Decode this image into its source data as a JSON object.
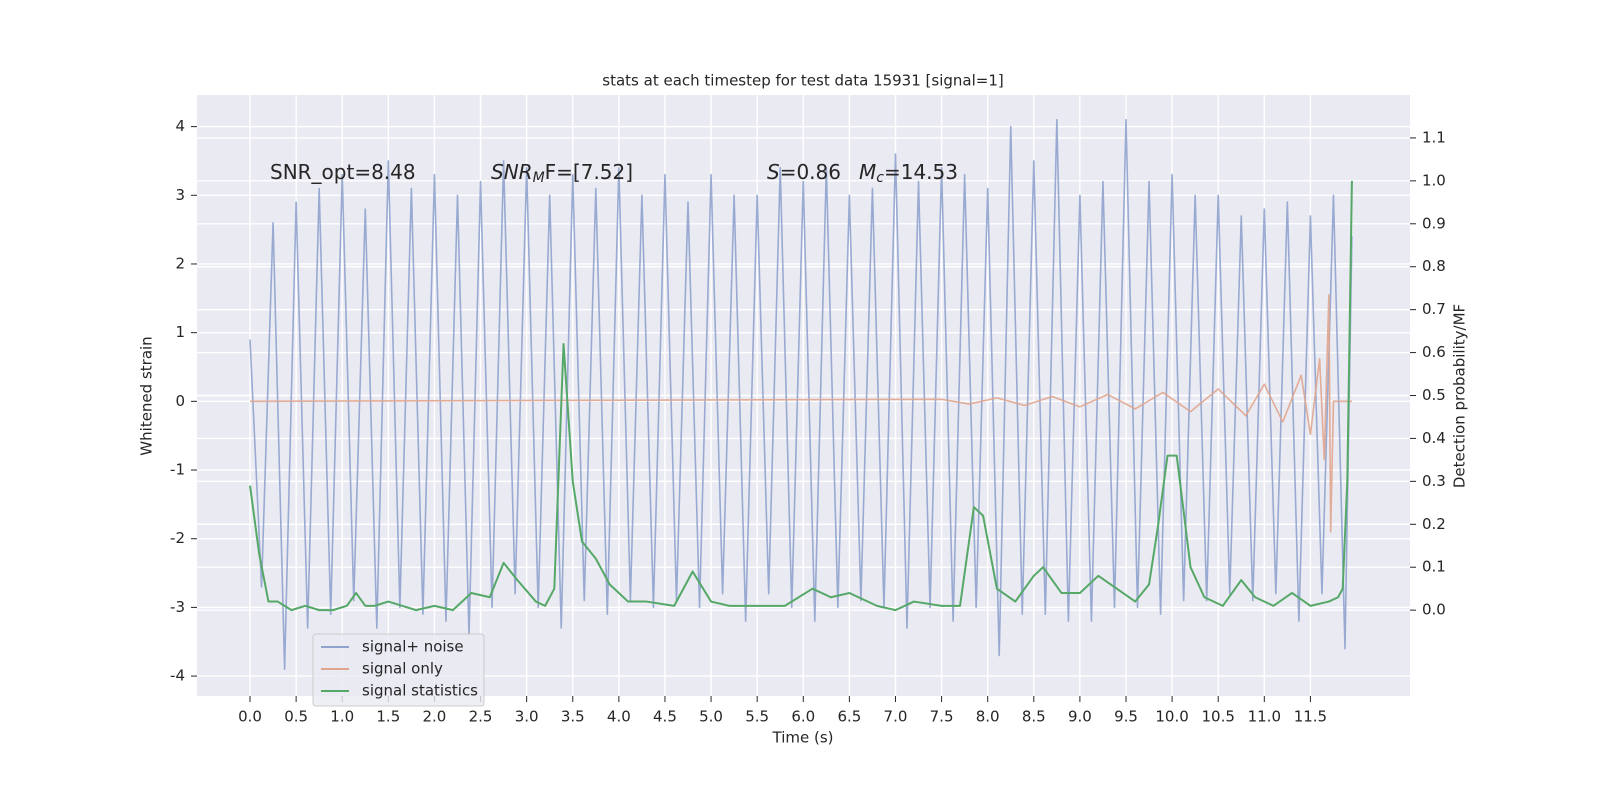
{
  "chart_data": {
    "type": "line",
    "title": "stats at each timestep for test data 15931 [signal=1]",
    "xlabel": "Time (s)",
    "ylabel": "Whitened strain",
    "y2label": "Detection probability/MF",
    "annotations": [
      {
        "text": "SNR_opt=8.48"
      },
      {
        "text": "SNR",
        "sub": "M",
        "rest": "F=[7.52]"
      },
      {
        "text": "S",
        "rest": "=0.86"
      },
      {
        "text": "M",
        "sub": "c",
        "rest": "=14.53"
      }
    ],
    "grid": true,
    "legend": "lower left",
    "xlim": [
      -0.575,
      12.58
    ],
    "ylim": [
      -4.29,
      4.46
    ],
    "y2lim": [
      -0.2,
      1.2
    ],
    "xticks": [
      {
        "value": 0,
        "label": "0.0"
      },
      0.5,
      {
        "value": 1,
        "label": "1.0"
      },
      1.5,
      {
        "value": 2,
        "label": "2.0"
      },
      2.5,
      {
        "value": 3,
        "label": "3.0"
      },
      3.5,
      {
        "value": 4,
        "label": "4.0"
      },
      4.5,
      {
        "value": 5,
        "label": "5.0"
      },
      5.5,
      {
        "value": 6,
        "label": "6.0"
      },
      6.5,
      {
        "value": 7,
        "label": "7.0"
      },
      7.5,
      {
        "value": 8,
        "label": "8.0"
      },
      8.5,
      {
        "value": 9,
        "label": "9.0"
      },
      9.5,
      {
        "value": 10,
        "label": "10.0"
      },
      10.5,
      {
        "value": 11,
        "label": "11.0"
      },
      11.5
    ],
    "yticks": [
      -4,
      -3,
      -2,
      -1,
      0,
      1,
      2,
      3,
      4
    ],
    "y2ticks": [
      {
        "value": 0,
        "label": "0.0"
      },
      0.1,
      0.2,
      0.3,
      0.4,
      0.5,
      0.6,
      0.7,
      0.8,
      0.9,
      {
        "value": 1,
        "label": "1.0"
      },
      1.1
    ],
    "series": [
      {
        "name": "signal+ noise",
        "color": "#8fa3cd",
        "x": [
          0,
          0.125,
          0.25,
          0.375,
          0.5,
          0.625,
          0.75,
          0.875,
          1,
          1.125,
          1.25,
          1.375,
          1.5,
          1.625,
          1.75,
          1.875,
          2,
          2.125,
          2.25,
          2.375,
          2.5,
          2.625,
          2.75,
          2.875,
          3,
          3.125,
          3.25,
          3.375,
          3.5,
          3.625,
          3.75,
          3.875,
          4,
          4.125,
          4.25,
          4.375,
          4.5,
          4.625,
          4.75,
          4.875,
          5,
          5.125,
          5.25,
          5.375,
          5.5,
          5.625,
          5.75,
          5.875,
          6,
          6.125,
          6.25,
          6.375,
          6.5,
          6.625,
          6.75,
          6.875,
          7,
          7.125,
          7.25,
          7.375,
          7.5,
          7.625,
          7.75,
          7.875,
          8,
          8.125,
          8.25,
          8.375,
          8.5,
          8.625,
          8.75,
          8.875,
          9,
          9.125,
          9.25,
          9.375,
          9.5,
          9.625,
          9.75,
          9.875,
          10,
          10.125,
          10.25,
          10.375,
          10.5,
          10.625,
          10.75,
          10.875,
          11,
          11.125,
          11.25,
          11.375,
          11.5,
          11.625,
          11.75,
          11.875,
          11.95
        ],
        "values": [
          0.9,
          -2.7,
          2.6,
          -3.9,
          2.9,
          -3.3,
          3.1,
          -3.1,
          3.3,
          -2.9,
          2.8,
          -3.3,
          3.5,
          -3.0,
          3.1,
          -3.1,
          3.3,
          -3.2,
          3.0,
          -3.4,
          3.2,
          -3.0,
          3.5,
          -2.8,
          3.4,
          -3.0,
          3.0,
          -3.3,
          3.3,
          -2.9,
          3.1,
          -3.1,
          3.4,
          -2.9,
          3.0,
          -3.0,
          3.3,
          -2.9,
          2.9,
          -3.0,
          3.3,
          -2.8,
          3.0,
          -3.2,
          3.0,
          -2.8,
          3.4,
          -3.0,
          3.2,
          -3.2,
          3.4,
          -3.0,
          3.0,
          -2.9,
          3.1,
          -3.0,
          3.6,
          -3.3,
          3.2,
          -3.0,
          3.4,
          -3.2,
          3.3,
          -3.0,
          3.1,
          -3.7,
          4.0,
          -3.1,
          3.5,
          -3.1,
          4.1,
          -3.2,
          3.0,
          -3.2,
          3.2,
          -3.0,
          4.1,
          -3.0,
          3.2,
          -3.1,
          3.3,
          -2.9,
          3.0,
          -2.9,
          3.0,
          -2.8,
          2.7,
          -2.9,
          2.8,
          -2.8,
          2.9,
          -3.2,
          2.7,
          -2.8,
          3.0,
          -3.6,
          2.4
        ]
      },
      {
        "name": "signal only",
        "color": "#e0a58e",
        "x": [
          0,
          7.5,
          7.8,
          8.1,
          8.4,
          8.7,
          9.0,
          9.3,
          9.6,
          9.9,
          10.2,
          10.5,
          10.8,
          11.0,
          11.2,
          11.4,
          11.5,
          11.6,
          11.65,
          11.7,
          11.72,
          11.75,
          11.95
        ],
        "values": [
          0,
          0.03,
          -0.04,
          0.05,
          -0.06,
          0.07,
          -0.08,
          0.1,
          -0.11,
          0.13,
          -0.15,
          0.18,
          -0.21,
          0.25,
          -0.3,
          0.38,
          -0.48,
          0.62,
          -0.85,
          1.55,
          -1.9,
          0,
          0
        ]
      },
      {
        "name": "signal statistics",
        "color": "#55a868",
        "axis": "y2",
        "x": [
          0,
          0.1,
          0.2,
          0.3,
          0.45,
          0.6,
          0.75,
          0.9,
          1.05,
          1.15,
          1.25,
          1.35,
          1.5,
          1.65,
          1.8,
          2.0,
          2.2,
          2.4,
          2.6,
          2.75,
          2.9,
          3.1,
          3.2,
          3.3,
          3.4,
          3.5,
          3.6,
          3.75,
          3.9,
          4.1,
          4.3,
          4.6,
          4.8,
          5.0,
          5.2,
          5.5,
          5.8,
          6.1,
          6.3,
          6.5,
          6.8,
          7.0,
          7.2,
          7.5,
          7.7,
          7.85,
          7.95,
          8.1,
          8.3,
          8.5,
          8.6,
          8.8,
          9.0,
          9.2,
          9.4,
          9.6,
          9.75,
          9.85,
          9.95,
          10.05,
          10.2,
          10.35,
          10.55,
          10.75,
          10.9,
          11.1,
          11.3,
          11.5,
          11.7,
          11.8,
          11.85,
          11.9,
          11.95
        ],
        "values": [
          0.29,
          0.13,
          0.02,
          0.02,
          0.0,
          0.01,
          0.0,
          0.0,
          0.01,
          0.04,
          0.01,
          0.01,
          0.02,
          0.01,
          0.0,
          0.01,
          0.0,
          0.04,
          0.03,
          0.11,
          0.07,
          0.02,
          0.01,
          0.05,
          0.62,
          0.3,
          0.16,
          0.12,
          0.06,
          0.02,
          0.02,
          0.01,
          0.09,
          0.02,
          0.01,
          0.01,
          0.01,
          0.05,
          0.03,
          0.04,
          0.01,
          0.0,
          0.02,
          0.01,
          0.01,
          0.24,
          0.22,
          0.05,
          0.02,
          0.08,
          0.1,
          0.04,
          0.04,
          0.08,
          0.05,
          0.02,
          0.06,
          0.2,
          0.36,
          0.36,
          0.1,
          0.03,
          0.01,
          0.07,
          0.03,
          0.01,
          0.04,
          0.01,
          0.02,
          0.03,
          0.05,
          0.3,
          1.0
        ]
      }
    ]
  }
}
